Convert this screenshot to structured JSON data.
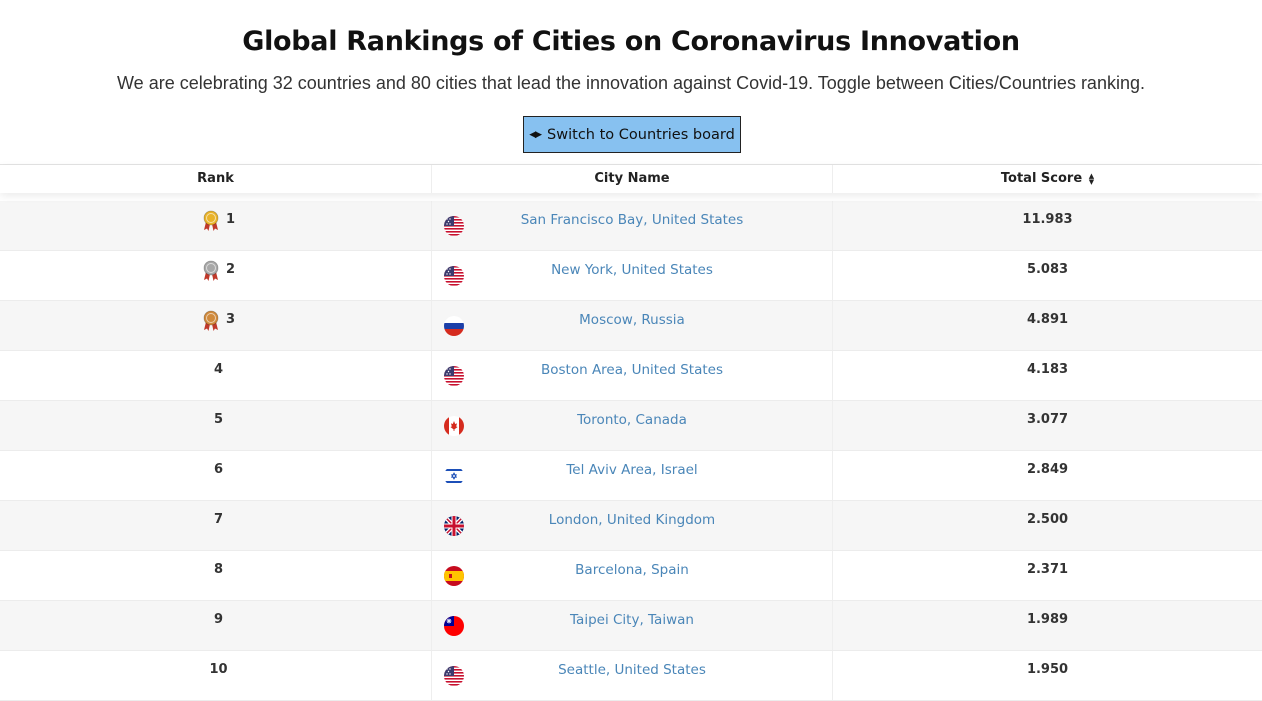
{
  "page": {
    "title": "Global Rankings of Cities on Coronavirus Innovation",
    "subtitle": "We are celebrating 32 countries and 80 cities that lead the innovation against Covid-19. Toggle between Cities/Countries ranking.",
    "toggle_label": "Switch to Countries board",
    "toggle_icon": "left-right-caret-icon"
  },
  "table": {
    "headers": {
      "rank": "Rank",
      "city": "City Name",
      "score": "Total Score"
    },
    "sort_icon": "sort-up-down-icon",
    "rows": [
      {
        "rank": "1",
        "medal": "gold",
        "flag": "united-states",
        "city": "San Francisco Bay, United States",
        "score": "11.983"
      },
      {
        "rank": "2",
        "medal": "silver",
        "flag": "united-states",
        "city": "New York, United States",
        "score": "5.083"
      },
      {
        "rank": "3",
        "medal": "bronze",
        "flag": "russia",
        "city": "Moscow, Russia",
        "score": "4.891"
      },
      {
        "rank": "4",
        "medal": "",
        "flag": "united-states",
        "city": "Boston Area, United States",
        "score": "4.183"
      },
      {
        "rank": "5",
        "medal": "",
        "flag": "canada",
        "city": "Toronto, Canada",
        "score": "3.077"
      },
      {
        "rank": "6",
        "medal": "",
        "flag": "israel",
        "city": "Tel Aviv Area, Israel",
        "score": "2.849"
      },
      {
        "rank": "7",
        "medal": "",
        "flag": "united-kingdom",
        "city": "London, United Kingdom",
        "score": "2.500"
      },
      {
        "rank": "8",
        "medal": "",
        "flag": "spain",
        "city": "Barcelona, Spain",
        "score": "2.371"
      },
      {
        "rank": "9",
        "medal": "",
        "flag": "taiwan",
        "city": "Taipei City, Taiwan",
        "score": "1.989"
      },
      {
        "rank": "10",
        "medal": "",
        "flag": "united-states",
        "city": "Seattle, United States",
        "score": "1.950"
      }
    ]
  },
  "colors": {
    "button_bg": "#87c1f0",
    "link": "#4a86b8",
    "row_stripe": "#f6f6f6",
    "gold": "#e9b32a",
    "silver": "#a8a8a8",
    "bronze": "#d08a3c",
    "ribbon": "#c0392b"
  }
}
